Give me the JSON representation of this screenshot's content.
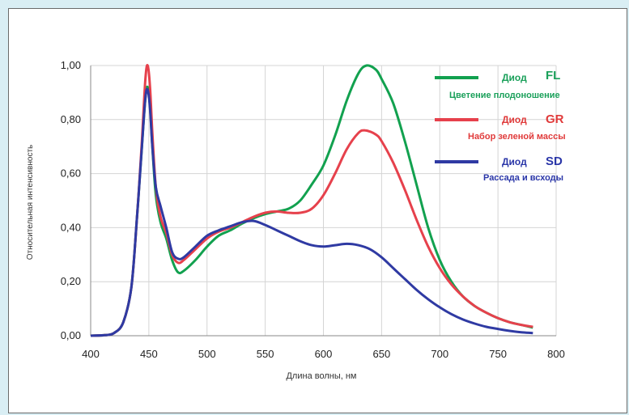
{
  "chart_data": {
    "type": "line",
    "xlabel": "Длина волны, нм",
    "ylabel": "Относительная интенсивность",
    "xlim": [
      400,
      800
    ],
    "ylim": [
      0,
      1
    ],
    "x_ticks": [
      "400",
      "450",
      "500",
      "550",
      "600",
      "650",
      "700",
      "750",
      "800"
    ],
    "y_ticks": [
      "0,00",
      "0,20",
      "0,40",
      "0,60",
      "0,80",
      "1,00"
    ],
    "grid": true,
    "legend_position": "top-right",
    "series": [
      {
        "name": "FL",
        "color": "#12a14f",
        "points": [
          [
            400,
            0
          ],
          [
            412,
            0.002
          ],
          [
            420,
            0.01
          ],
          [
            428,
            0.05
          ],
          [
            435,
            0.18
          ],
          [
            440,
            0.45
          ],
          [
            444,
            0.7
          ],
          [
            447,
            0.88
          ],
          [
            449,
            0.92
          ],
          [
            451,
            0.85
          ],
          [
            453,
            0.7
          ],
          [
            456,
            0.52
          ],
          [
            460,
            0.42
          ],
          [
            465,
            0.36
          ],
          [
            470,
            0.28
          ],
          [
            475,
            0.235
          ],
          [
            480,
            0.24
          ],
          [
            490,
            0.28
          ],
          [
            500,
            0.33
          ],
          [
            510,
            0.37
          ],
          [
            520,
            0.39
          ],
          [
            530,
            0.415
          ],
          [
            540,
            0.435
          ],
          [
            550,
            0.45
          ],
          [
            560,
            0.46
          ],
          [
            570,
            0.47
          ],
          [
            580,
            0.5
          ],
          [
            590,
            0.56
          ],
          [
            600,
            0.63
          ],
          [
            610,
            0.74
          ],
          [
            620,
            0.87
          ],
          [
            630,
            0.97
          ],
          [
            637,
            1.0
          ],
          [
            645,
            0.985
          ],
          [
            650,
            0.95
          ],
          [
            660,
            0.86
          ],
          [
            670,
            0.72
          ],
          [
            680,
            0.56
          ],
          [
            690,
            0.4
          ],
          [
            700,
            0.28
          ],
          [
            710,
            0.2
          ],
          [
            720,
            0.145
          ],
          [
            730,
            0.11
          ],
          [
            740,
            0.085
          ],
          [
            750,
            0.065
          ],
          [
            760,
            0.05
          ],
          [
            770,
            0.04
          ],
          [
            780,
            0.03
          ]
        ]
      },
      {
        "name": "GR",
        "color": "#e6414c",
        "points": [
          [
            400,
            0
          ],
          [
            412,
            0.002
          ],
          [
            420,
            0.01
          ],
          [
            428,
            0.05
          ],
          [
            435,
            0.18
          ],
          [
            440,
            0.45
          ],
          [
            444,
            0.72
          ],
          [
            447,
            0.95
          ],
          [
            449,
            1.0
          ],
          [
            451,
            0.92
          ],
          [
            453,
            0.75
          ],
          [
            456,
            0.55
          ],
          [
            460,
            0.44
          ],
          [
            465,
            0.38
          ],
          [
            470,
            0.3
          ],
          [
            475,
            0.27
          ],
          [
            480,
            0.28
          ],
          [
            490,
            0.32
          ],
          [
            500,
            0.36
          ],
          [
            510,
            0.385
          ],
          [
            520,
            0.4
          ],
          [
            530,
            0.42
          ],
          [
            540,
            0.44
          ],
          [
            550,
            0.455
          ],
          [
            560,
            0.46
          ],
          [
            570,
            0.455
          ],
          [
            580,
            0.455
          ],
          [
            590,
            0.47
          ],
          [
            600,
            0.52
          ],
          [
            610,
            0.6
          ],
          [
            620,
            0.69
          ],
          [
            630,
            0.75
          ],
          [
            636,
            0.76
          ],
          [
            645,
            0.745
          ],
          [
            650,
            0.72
          ],
          [
            660,
            0.64
          ],
          [
            670,
            0.54
          ],
          [
            680,
            0.43
          ],
          [
            690,
            0.33
          ],
          [
            700,
            0.25
          ],
          [
            710,
            0.19
          ],
          [
            720,
            0.145
          ],
          [
            730,
            0.11
          ],
          [
            740,
            0.085
          ],
          [
            750,
            0.065
          ],
          [
            760,
            0.05
          ],
          [
            770,
            0.04
          ],
          [
            780,
            0.033
          ]
        ]
      },
      {
        "name": "SD",
        "color": "#2f3aa3",
        "points": [
          [
            400,
            0
          ],
          [
            412,
            0.002
          ],
          [
            420,
            0.01
          ],
          [
            428,
            0.05
          ],
          [
            435,
            0.18
          ],
          [
            440,
            0.45
          ],
          [
            444,
            0.7
          ],
          [
            447,
            0.88
          ],
          [
            449,
            0.91
          ],
          [
            451,
            0.84
          ],
          [
            453,
            0.7
          ],
          [
            456,
            0.55
          ],
          [
            460,
            0.48
          ],
          [
            465,
            0.4
          ],
          [
            470,
            0.31
          ],
          [
            475,
            0.285
          ],
          [
            480,
            0.29
          ],
          [
            490,
            0.33
          ],
          [
            500,
            0.37
          ],
          [
            510,
            0.39
          ],
          [
            520,
            0.405
          ],
          [
            530,
            0.42
          ],
          [
            540,
            0.425
          ],
          [
            550,
            0.41
          ],
          [
            560,
            0.39
          ],
          [
            570,
            0.37
          ],
          [
            580,
            0.35
          ],
          [
            590,
            0.335
          ],
          [
            600,
            0.33
          ],
          [
            610,
            0.335
          ],
          [
            620,
            0.34
          ],
          [
            630,
            0.335
          ],
          [
            640,
            0.32
          ],
          [
            650,
            0.29
          ],
          [
            660,
            0.25
          ],
          [
            670,
            0.21
          ],
          [
            680,
            0.17
          ],
          [
            690,
            0.135
          ],
          [
            700,
            0.105
          ],
          [
            710,
            0.08
          ],
          [
            720,
            0.06
          ],
          [
            730,
            0.045
          ],
          [
            740,
            0.033
          ],
          [
            750,
            0.025
          ],
          [
            760,
            0.018
          ],
          [
            770,
            0.013
          ],
          [
            780,
            0.01
          ]
        ]
      }
    ]
  },
  "legend": [
    {
      "label": "Диод",
      "code": "FL",
      "subtitle": "Цветение плодоношение",
      "line_color": "#12a14f",
      "text_color": "#1aa05a"
    },
    {
      "label": "Диод",
      "code": "GR",
      "subtitle": "Набор зеленой массы",
      "line_color": "#e6414c",
      "text_color": "#e03a3a"
    },
    {
      "label": "Диод",
      "code": "SD",
      "subtitle": "Рассада и всходы",
      "line_color": "#2f3aa3",
      "text_color": "#2a36a8"
    }
  ]
}
